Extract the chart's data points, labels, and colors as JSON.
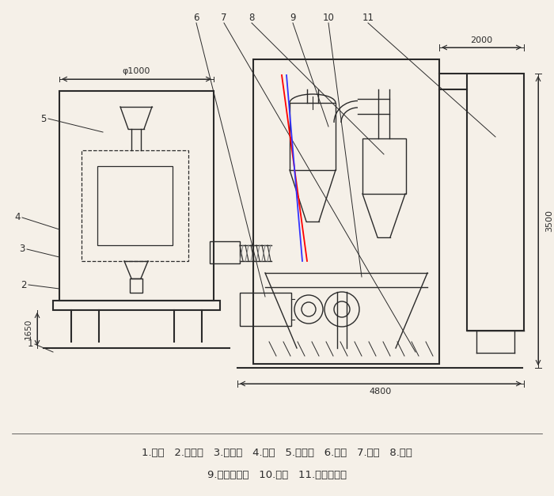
{
  "bg_color": "#f5f0e8",
  "line_color": "#2a2a2a",
  "title_line1": "1.底座   2.回风道   3.激振器   4.筛网   5.进料斗   6.风机   7.绞龙   8.料仓",
  "title_line2": "9.旋风分离器   10.支架   11.布袋除尘器",
  "dim_1650": "1650",
  "dim_phi1000": "φ1000",
  "dim_2000": "2000",
  "dim_3500": "3500",
  "dim_4800": "4800"
}
